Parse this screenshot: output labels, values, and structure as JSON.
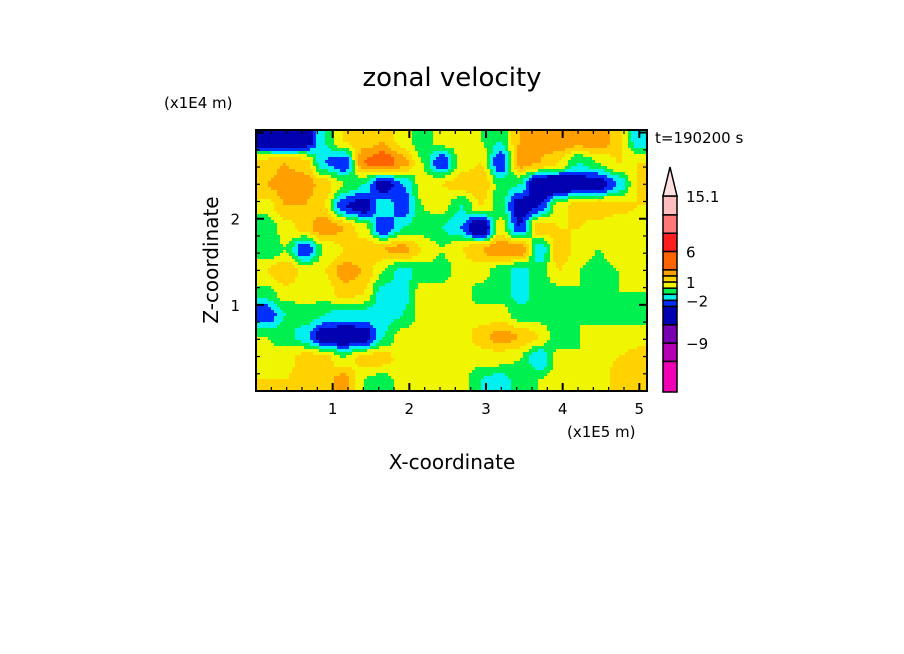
{
  "chart_data": {
    "type": "heatmap",
    "subtype": "filled-contour",
    "title": "zonal velocity",
    "xlabel": "X-coordinate",
    "ylabel": "Z-coordinate",
    "x_unit": "(x1E5 m)",
    "y_unit": "(x1E4 m)",
    "time_label": "t=190200 s",
    "xlim": [
      0,
      5.1
    ],
    "ylim": [
      0,
      3.03
    ],
    "x_ticks": [
      "1",
      "2",
      "3",
      "4",
      "5"
    ],
    "x_tick_values": [
      1,
      2,
      3,
      4,
      5
    ],
    "y_ticks": [
      "1",
      "2"
    ],
    "y_tick_values": [
      1,
      2
    ],
    "colorbar": {
      "levels": [
        {
          "min": 12,
          "max": 15.1,
          "color": "#ffbebe"
        },
        {
          "min": 9,
          "max": 12,
          "color": "#ff7878"
        },
        {
          "min": 6,
          "max": 9,
          "color": "#ff1e1e"
        },
        {
          "min": 3,
          "max": 6,
          "color": "#ff6400"
        },
        {
          "min": 2,
          "max": 3,
          "color": "#ffa000"
        },
        {
          "min": 1,
          "max": 2,
          "color": "#ffd200"
        },
        {
          "min": 0,
          "max": 1,
          "color": "#f0f500"
        },
        {
          "min": -1,
          "max": 0,
          "color": "#00f050"
        },
        {
          "min": -2,
          "max": -1,
          "color": "#00f0f0"
        },
        {
          "min": -3,
          "max": -2,
          "color": "#0030ff"
        },
        {
          "min": -6,
          "max": -3,
          "color": "#0000b0"
        },
        {
          "min": -9,
          "max": -6,
          "color": "#7800b0"
        },
        {
          "min": -12,
          "max": -9,
          "color": "#b400b0"
        },
        {
          "min": -17,
          "max": -12,
          "color": "#f000b4"
        }
      ],
      "over_color": "#ffe0e0",
      "labels": [
        "15.1",
        "6",
        "1",
        "-2",
        "-9"
      ],
      "label_values": [
        15.1,
        6,
        1,
        -2,
        -9
      ]
    },
    "field": {
      "rows": [
        [
          -4,
          -5,
          -4,
          -1,
          1,
          1.5,
          2,
          0.5,
          -0.5,
          0.5,
          0.5,
          0,
          -1,
          2,
          2.5,
          3,
          2.5,
          3,
          1.5,
          -1.5
        ],
        [
          1.5,
          2,
          1.5,
          -2,
          -3,
          3,
          4,
          2.5,
          0,
          -3,
          0.5,
          1,
          -3,
          2.5,
          2,
          1,
          -1,
          0,
          1,
          1
        ],
        [
          2,
          2.5,
          2.5,
          1.5,
          0,
          -1,
          -4,
          -2,
          0.5,
          1,
          1.5,
          2,
          -0.5,
          -1,
          -5,
          -5,
          -4,
          -4,
          -2,
          1
        ],
        [
          0.5,
          2,
          2,
          1,
          -3,
          -4,
          -1,
          -3,
          0,
          0.5,
          -1,
          1,
          -0.5,
          -4,
          -3,
          0.5,
          1.5,
          2,
          1.5,
          1
        ],
        [
          -1,
          0.5,
          1.5,
          3,
          2,
          0.5,
          -3,
          -1,
          -0.5,
          -1,
          -2,
          -5,
          0.5,
          -3,
          2,
          1,
          1,
          0.5,
          0,
          0
        ],
        [
          -1,
          0,
          -3,
          0,
          1,
          1.5,
          2,
          2.5,
          1,
          0,
          1,
          2,
          3,
          3,
          -2,
          2,
          0.5,
          0,
          0.5,
          0
        ],
        [
          1,
          2,
          0.5,
          1,
          2.5,
          2,
          0,
          -1.5,
          -0.5,
          -0.5,
          0.5,
          0.5,
          -0.5,
          -1.5,
          -0.5,
          1,
          0,
          -0.5,
          0,
          0.5
        ],
        [
          -0.5,
          0.5,
          0.5,
          0.5,
          1.5,
          1,
          -1.5,
          -1.5,
          0.5,
          0.5,
          0.5,
          -0.5,
          -0.5,
          -1.5,
          -0.5,
          -0.5,
          0,
          -1,
          0,
          0
        ],
        [
          -3,
          -1,
          -0.5,
          -1,
          -1.5,
          -1.5,
          -1.5,
          -1,
          0.5,
          0.5,
          0.5,
          0.5,
          0.5,
          -0.5,
          -0.5,
          -0.5,
          0,
          -0.5,
          0,
          -0.5
        ],
        [
          0,
          -0.5,
          -1.5,
          -4,
          -4.5,
          -4,
          -1,
          0.5,
          0.5,
          0.5,
          0.5,
          1.5,
          2.5,
          2,
          1,
          -1,
          0,
          0.5,
          0,
          0.5
        ],
        [
          0.5,
          0.5,
          1.5,
          1.5,
          0,
          1.5,
          1.5,
          0.5,
          0.5,
          0.5,
          0.5,
          0.5,
          0.5,
          0,
          -2,
          0.5,
          0,
          0.5,
          1,
          1.5
        ],
        [
          1,
          1,
          1.5,
          1.5,
          2.5,
          0,
          -0.5,
          0.5,
          0.5,
          0.5,
          0.5,
          -1,
          -1.5,
          -0.5,
          0,
          0.5,
          0.5,
          0,
          1.5,
          1
        ]
      ]
    }
  }
}
